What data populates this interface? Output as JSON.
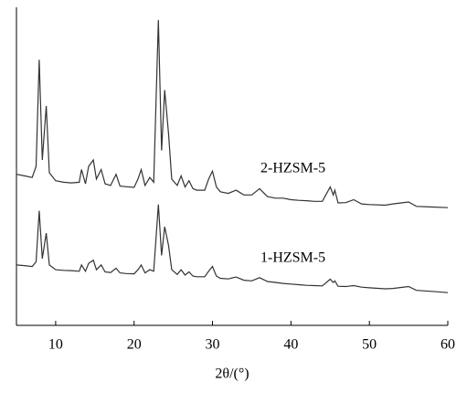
{
  "chart_data": {
    "type": "line",
    "xlabel": "2θ/(°)",
    "xlim": [
      5,
      60
    ],
    "xticks": [
      10,
      20,
      30,
      40,
      50,
      60
    ],
    "ylim": [
      0,
      100
    ],
    "x": [
      5,
      6,
      7,
      7.5,
      7.9,
      8.3,
      8.8,
      9.2,
      10,
      11,
      12,
      13,
      13.3,
      13.8,
      14.2,
      14.8,
      15.2,
      15.8,
      16.3,
      17,
      17.7,
      18.2,
      19,
      20,
      20.5,
      20.9,
      21.4,
      22,
      22.5,
      23.1,
      23.5,
      23.9,
      24.4,
      24.8,
      25.5,
      26,
      26.5,
      27,
      27.5,
      28,
      29,
      29.5,
      30,
      30.5,
      31,
      32,
      33,
      34,
      35,
      36,
      37,
      38,
      39,
      40,
      41,
      42,
      43,
      44,
      45,
      45.4,
      45.6,
      46,
      47,
      48,
      49,
      50,
      52,
      53,
      55,
      56,
      58,
      60
    ],
    "series": [
      {
        "name": "2-HZSM-5",
        "color": "#333333",
        "values": [
          47.5,
          47,
          46.5,
          50,
          83.5,
          52,
          69,
          48,
          45.5,
          45,
          44.8,
          45,
          49,
          44.5,
          50,
          52,
          46,
          49,
          44.5,
          44,
          47.5,
          43.8,
          43.6,
          43.4,
          46,
          49,
          44,
          46.5,
          45,
          96,
          55,
          74,
          60,
          46,
          44,
          47,
          43.5,
          45.5,
          43,
          42.5,
          42.5,
          46,
          48.5,
          43.5,
          42,
          41.5,
          42.5,
          41,
          41,
          43,
          40.5,
          40,
          40,
          39.5,
          39.3,
          39.2,
          39,
          39,
          43.5,
          41,
          42.5,
          38.5,
          38.6,
          39.5,
          38.2,
          38,
          37.8,
          38.2,
          38.8,
          37.4,
          37.2,
          37
        ]
      },
      {
        "name": "1-HZSM-5",
        "color": "#333333",
        "values": [
          19,
          18.8,
          18.5,
          20,
          36,
          21,
          29,
          19,
          17.5,
          17.3,
          17.2,
          17,
          19,
          17,
          19.5,
          20.5,
          17.5,
          19,
          16.8,
          16.6,
          18,
          16.5,
          16.3,
          16.2,
          17.5,
          19,
          16.5,
          17.5,
          17,
          38,
          22,
          31,
          25,
          17.5,
          16,
          17.5,
          15.8,
          16.8,
          15.5,
          15.3,
          15.3,
          17,
          18.5,
          15.5,
          14.8,
          14.6,
          15.2,
          14.2,
          14,
          15,
          13.8,
          13.5,
          13.2,
          13,
          12.8,
          12.6,
          12.5,
          12.4,
          14.5,
          13.5,
          14,
          12.3,
          12.2,
          12.5,
          12,
          11.8,
          11.5,
          11.6,
          12.2,
          11,
          10.7,
          10.3
        ]
      }
    ]
  }
}
